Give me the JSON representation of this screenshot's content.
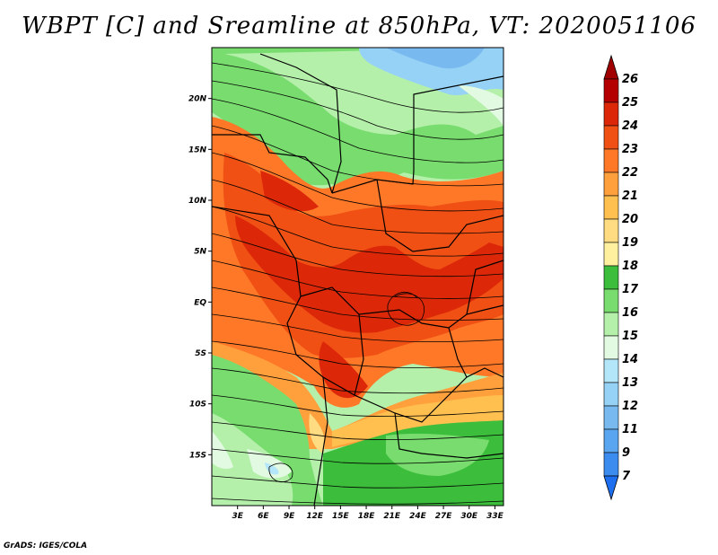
{
  "title": "WBPT [C] and Sreamline at 850hPa, VT: 2020051106",
  "credit": "GrADS: IGES/COLA",
  "map": {
    "lon_range": [
      0,
      34
    ],
    "lat_range": [
      -20,
      25
    ],
    "lat_ticks": [
      {
        "value": 20,
        "label": "20N"
      },
      {
        "value": 15,
        "label": "15N"
      },
      {
        "value": 10,
        "label": "10N"
      },
      {
        "value": 5,
        "label": "5N"
      },
      {
        "value": 0,
        "label": "EQ"
      },
      {
        "value": -5,
        "label": "5S"
      },
      {
        "value": -10,
        "label": "10S"
      },
      {
        "value": -15,
        "label": "15S"
      }
    ],
    "lon_ticks": [
      {
        "value": 3,
        "label": "3E"
      },
      {
        "value": 6,
        "label": "6E"
      },
      {
        "value": 9,
        "label": "9E"
      },
      {
        "value": 12,
        "label": "12E"
      },
      {
        "value": 15,
        "label": "15E"
      },
      {
        "value": 18,
        "label": "18E"
      },
      {
        "value": 21,
        "label": "21E"
      },
      {
        "value": 24,
        "label": "24E"
      },
      {
        "value": 27,
        "label": "27E"
      },
      {
        "value": 30,
        "label": "30E"
      },
      {
        "value": 33,
        "label": "33E"
      }
    ]
  },
  "colorbar": {
    "levels": [
      "7",
      "9",
      "11",
      "12",
      "13",
      "14",
      "15",
      "16",
      "17",
      "18",
      "19",
      "20",
      "21",
      "22",
      "23",
      "24",
      "25",
      "26"
    ],
    "colors": [
      "#1e6ef0",
      "#3c8cf0",
      "#5aa5f0",
      "#78b9f0",
      "#96d2f5",
      "#b4e6fa",
      "#e1fae1",
      "#b4f0aa",
      "#78dc6e",
      "#3cbe3c",
      "#fff0a0",
      "#ffdc82",
      "#ffc050",
      "#ffa03c",
      "#ff7828",
      "#f05014",
      "#dc2808",
      "#b40000",
      "#a00000"
    ]
  }
}
